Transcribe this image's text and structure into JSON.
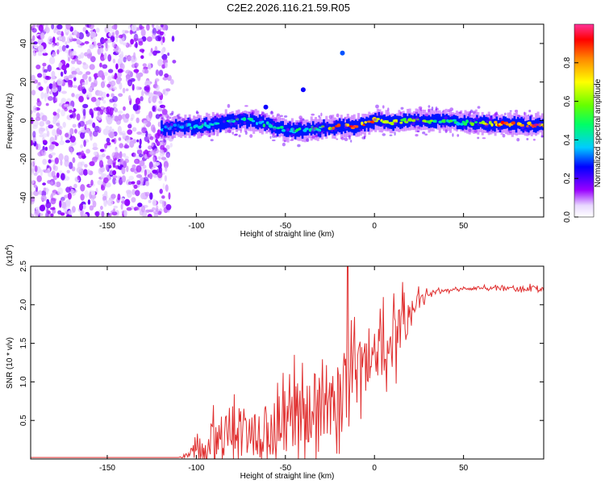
{
  "page": {
    "title": "C2E2.2026.116.21.59.R05"
  },
  "chart_data": [
    {
      "type": "heatmap",
      "xlabel": "Height of straight line (km)",
      "ylabel": "Frequency (Hz)",
      "xlim": [
        -193,
        95
      ],
      "ylim": [
        -50,
        50
      ],
      "xticks": [
        "-150",
        "-100",
        "-50",
        "0",
        "50"
      ],
      "xtick_values": [
        -150,
        -100,
        -50,
        0,
        50
      ],
      "yticks": [
        "40",
        "20",
        "0",
        "-20",
        "-40"
      ],
      "ytick_values": [
        40,
        20,
        0,
        -20,
        -40
      ],
      "noise_region_x": [
        -193,
        -118
      ],
      "ridge": {
        "x": [
          -120,
          -110,
          -100,
          -90,
          -80,
          -70,
          -60,
          -50,
          -40,
          -30,
          -20,
          -10,
          0,
          10,
          20,
          30,
          40,
          50,
          60,
          70,
          80,
          90,
          95
        ],
        "freq": [
          -4,
          -3,
          -3,
          -2,
          0,
          0,
          -2,
          -5,
          -5,
          -4,
          -3,
          -3,
          0,
          -1,
          0,
          0,
          0,
          -1,
          -1,
          -2,
          -2,
          -2,
          -2
        ],
        "amplitude": [
          0.35,
          0.4,
          0.42,
          0.45,
          0.5,
          0.5,
          0.48,
          0.45,
          0.5,
          0.55,
          0.95,
          0.95,
          0.9,
          0.7,
          0.7,
          0.65,
          0.55,
          0.5,
          0.7,
          0.95,
          0.97,
          0.95,
          0.9
        ],
        "width_hz": 7
      },
      "isolated_blobs": [
        {
          "x": -18,
          "freq": 35,
          "amplitude": 0.3
        },
        {
          "x": -40,
          "freq": 16,
          "amplitude": 0.25
        },
        {
          "x": -61,
          "freq": 7,
          "amplitude": 0.25
        }
      ]
    },
    {
      "type": "colorbar",
      "label": "Normalized spectral amplitude",
      "range": [
        0,
        1
      ],
      "ticks": [
        "0.0",
        "0.2",
        "0.4",
        "0.6",
        "0.8"
      ],
      "tick_values": [
        0,
        0.2,
        0.4,
        0.6,
        0.8
      ]
    },
    {
      "type": "line",
      "xlabel": "Height of straight line (km)",
      "ylabel": "SNR (10 * v/v)",
      "multiplier_label": "(x10",
      "multiplier_exp": "4",
      "multiplier_close": ")",
      "xlim": [
        -193,
        95
      ],
      "ylim": [
        0,
        2.5
      ],
      "xticks": [
        "-150",
        "-100",
        "-50",
        "0",
        "50"
      ],
      "xtick_values": [
        -150,
        -100,
        -50,
        0,
        50
      ],
      "yticks": [
        "2.5",
        "2.0",
        "1.5",
        "1.0",
        "0.5"
      ],
      "ytick_values": [
        2.5,
        2.0,
        1.5,
        1.0,
        0.5
      ],
      "series": [
        {
          "name": "SNR",
          "color": "#e03030",
          "x": [
            -193,
            -110,
            -105,
            -100,
            -95,
            -90,
            -85,
            -80,
            -75,
            -70,
            -65,
            -60,
            -55,
            -50,
            -45,
            -40,
            -35,
            -30,
            -25,
            -20,
            -15,
            -10,
            -5,
            0,
            5,
            10,
            15,
            20,
            25,
            30,
            40,
            50,
            60,
            70,
            80,
            90,
            95
          ],
          "y": [
            0.02,
            0.02,
            0.05,
            0.12,
            0.15,
            0.2,
            0.3,
            0.35,
            0.3,
            0.38,
            0.3,
            0.4,
            0.45,
            0.5,
            0.55,
            0.6,
            0.6,
            0.7,
            0.7,
            0.8,
            0.95,
            1.05,
            1.2,
            1.3,
            1.45,
            1.55,
            1.7,
            1.85,
            2.05,
            2.15,
            2.18,
            2.2,
            2.22,
            2.22,
            2.2,
            2.22,
            2.2
          ],
          "noise": [
            0.0,
            0.0,
            0.05,
            0.15,
            0.3,
            0.4,
            0.5,
            0.5,
            0.55,
            0.5,
            0.55,
            0.6,
            0.6,
            0.6,
            0.6,
            0.6,
            0.65,
            0.65,
            0.65,
            0.7,
            0.8,
            0.8,
            0.5,
            0.5,
            0.55,
            0.6,
            0.5,
            0.3,
            0.15,
            0.05,
            0.03,
            0.03,
            0.03,
            0.03,
            0.04,
            0.05,
            0.05
          ]
        }
      ],
      "peaks": [
        {
          "x": -15,
          "y": 2.5
        },
        {
          "x": -13,
          "y": 1.8
        },
        {
          "x": 5,
          "y": 2.1
        },
        {
          "x": -45,
          "y": 1.35
        }
      ]
    }
  ]
}
